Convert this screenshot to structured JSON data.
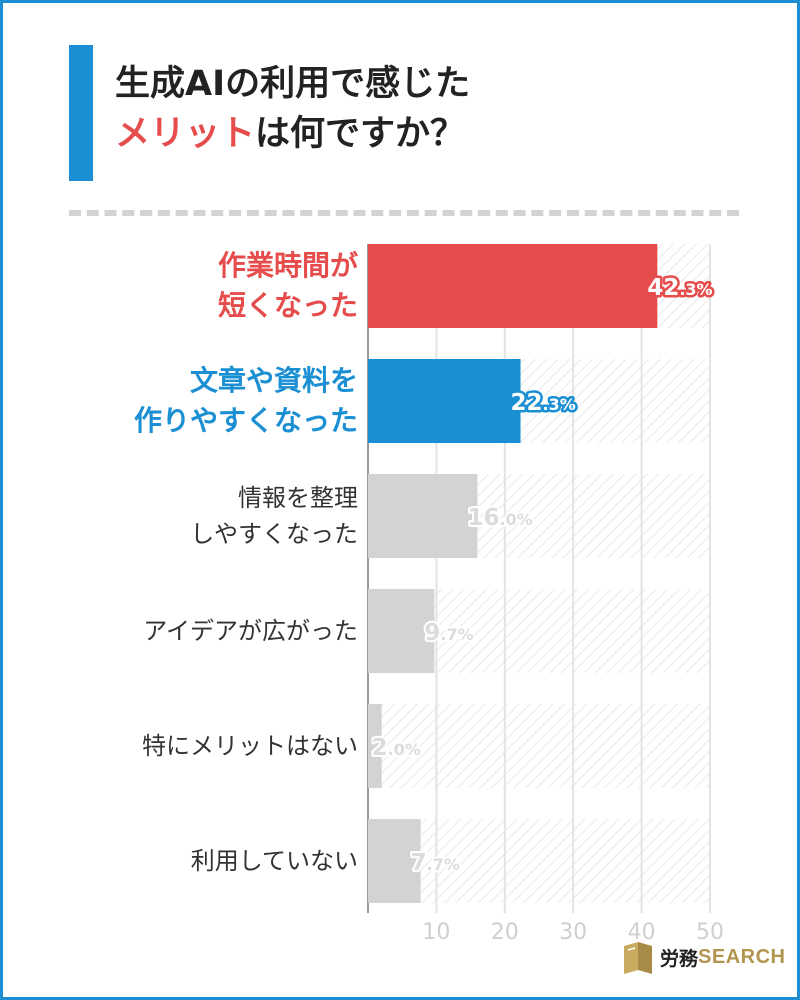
{
  "title": {
    "line1": "生成AIの利用で感じた",
    "line2_highlight": "メリット",
    "line2_rest": "は何ですか？"
  },
  "colors": {
    "accent_blue": "#1a8fd3",
    "accent_red": "#e64c4c",
    "bar_gray": "#d3d3d3",
    "bar_red": "#e64c4c",
    "bar_blue": "#1a8fd3"
  },
  "chart_data": {
    "type": "bar",
    "orientation": "horizontal",
    "categories": [
      [
        "作業時間が",
        "短くなった"
      ],
      [
        "文章や資料を",
        "作りやすくなった"
      ],
      [
        "情報を整理",
        "しやすくなった"
      ],
      [
        "アイデアが広がった"
      ],
      [
        "特にメリットはない"
      ],
      [
        "利用していない"
      ]
    ],
    "values": [
      42.3,
      22.3,
      16.0,
      9.7,
      2.0,
      7.7
    ],
    "value_labels": [
      "42.3%",
      "22.3%",
      "16.0%",
      "9.7%",
      "2.0%",
      "7.7%"
    ],
    "highlight": [
      "red",
      "blue",
      "none",
      "none",
      "none",
      "none"
    ],
    "xlim": [
      0,
      50
    ],
    "xticks": [
      10,
      20,
      30,
      40,
      50
    ],
    "grid": true
  },
  "logo": {
    "jp": "労務",
    "en": "SEARCH"
  }
}
